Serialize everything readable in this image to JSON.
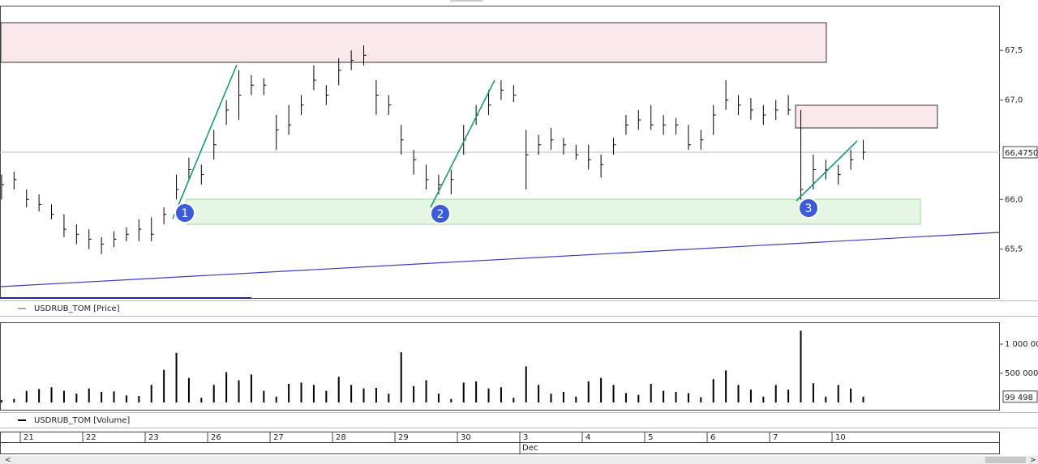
{
  "chart_data": [
    {
      "type": "ohlc",
      "legend": "USDRUB_TOM [Price]",
      "color": "#000000",
      "x": [
        -0.3,
        -0.1,
        0.1,
        0.3,
        0.5,
        0.7,
        0.9,
        1.1,
        1.3,
        1.5,
        1.7,
        1.9,
        2.1,
        2.3,
        2.5,
        2.7,
        2.9,
        3.1,
        3.3,
        3.5,
        3.7,
        3.9,
        4.1,
        4.3,
        4.5,
        4.7,
        4.9,
        5.1,
        5.3,
        5.5,
        5.7,
        5.9,
        6.1,
        6.3,
        6.5,
        6.7,
        6.9,
        7.1,
        7.3,
        7.5,
        7.7,
        7.9,
        8.1,
        8.3,
        8.5,
        8.7,
        8.9,
        9.1,
        9.3,
        9.5,
        9.7,
        9.9,
        10.1,
        10.3,
        10.5,
        10.7,
        10.9,
        11.1,
        11.3,
        11.5,
        11.7,
        11.9,
        12.1,
        12.3,
        12.5,
        12.7,
        12.9,
        13.1,
        13.3,
        13.5
      ],
      "high": [
        66.25,
        66.28,
        66.1,
        66.05,
        65.95,
        65.85,
        65.75,
        65.7,
        65.62,
        65.68,
        65.72,
        65.8,
        65.82,
        65.92,
        66.25,
        66.42,
        66.35,
        66.7,
        67.0,
        67.3,
        67.25,
        67.22,
        66.85,
        66.95,
        67.05,
        67.35,
        67.15,
        67.42,
        67.5,
        67.55,
        67.2,
        67.05,
        66.75,
        66.5,
        66.35,
        66.25,
        66.3,
        66.75,
        66.95,
        67.1,
        67.2,
        67.15,
        66.7,
        66.65,
        66.72,
        66.62,
        66.55,
        66.55,
        66.45,
        66.62,
        66.85,
        66.9,
        66.95,
        66.85,
        66.82,
        66.75,
        66.7,
        66.95,
        67.2,
        67.05,
        67.02,
        66.95,
        67.0,
        67.05,
        66.9,
        66.45,
        66.4,
        66.35,
        66.5,
        66.6
      ],
      "low": [
        66.0,
        66.1,
        65.92,
        65.88,
        65.8,
        65.62,
        65.55,
        65.5,
        65.45,
        65.52,
        65.58,
        65.58,
        65.58,
        65.75,
        66.0,
        66.2,
        66.15,
        66.4,
        66.75,
        66.8,
        67.05,
        67.05,
        66.5,
        66.65,
        66.85,
        67.1,
        66.95,
        67.15,
        67.3,
        67.35,
        66.85,
        66.85,
        66.45,
        66.25,
        66.1,
        66.05,
        66.05,
        66.45,
        66.75,
        66.85,
        67.0,
        66.98,
        66.1,
        66.45,
        66.5,
        66.45,
        66.4,
        66.3,
        66.22,
        66.45,
        66.65,
        66.7,
        66.7,
        66.65,
        66.65,
        66.5,
        66.5,
        66.65,
        66.9,
        66.85,
        66.8,
        66.75,
        66.8,
        66.85,
        66.0,
        66.1,
        66.2,
        66.15,
        66.3,
        66.4
      ],
      "close": [
        66.15,
        66.2,
        66.0,
        65.95,
        65.85,
        65.7,
        65.65,
        65.6,
        65.55,
        65.6,
        65.65,
        65.7,
        65.65,
        65.85,
        66.1,
        66.3,
        66.25,
        66.55,
        66.9,
        67.05,
        67.15,
        67.15,
        66.7,
        66.75,
        66.95,
        67.2,
        67.05,
        67.3,
        67.4,
        67.45,
        67.05,
        66.95,
        66.6,
        66.4,
        66.2,
        66.15,
        66.2,
        66.6,
        66.85,
        66.95,
        67.1,
        67.05,
        66.45,
        66.55,
        66.6,
        66.55,
        66.45,
        66.4,
        66.35,
        66.55,
        66.75,
        66.8,
        66.75,
        66.75,
        66.75,
        66.55,
        66.6,
        66.85,
        67.0,
        66.95,
        66.9,
        66.85,
        66.9,
        66.9,
        66.1,
        66.3,
        66.3,
        66.25,
        66.4,
        66.475
      ],
      "ylim": [
        65.0,
        67.95
      ],
      "yticks": [
        {
          "value": 65.5,
          "label": "65,5"
        },
        {
          "value": 66.0,
          "label": "66,0"
        },
        {
          "value": 67.0,
          "label": "67,0"
        },
        {
          "value": 67.5,
          "label": "67,5"
        }
      ],
      "last": {
        "value": 66.475,
        "label": "66,4750"
      }
    },
    {
      "type": "bar",
      "legend": "USDRUB_TOM [Volume]",
      "color": "#000000",
      "x": [
        -0.3,
        -0.1,
        0.1,
        0.3,
        0.5,
        0.7,
        0.9,
        1.1,
        1.3,
        1.5,
        1.7,
        1.9,
        2.1,
        2.3,
        2.5,
        2.7,
        2.9,
        3.1,
        3.3,
        3.5,
        3.7,
        3.9,
        4.1,
        4.3,
        4.5,
        4.7,
        4.9,
        5.1,
        5.3,
        5.5,
        5.7,
        5.9,
        6.1,
        6.3,
        6.5,
        6.7,
        6.9,
        7.1,
        7.3,
        7.5,
        7.7,
        7.9,
        8.1,
        8.3,
        8.5,
        8.7,
        8.9,
        9.1,
        9.3,
        9.5,
        9.7,
        9.9,
        10.1,
        10.3,
        10.5,
        10.7,
        10.9,
        11.1,
        11.3,
        11.5,
        11.7,
        11.9,
        12.1,
        12.3,
        12.5,
        12.7,
        12.9,
        13.1,
        13.3,
        13.5
      ],
      "values": [
        40000,
        60000,
        200000,
        230000,
        260000,
        200000,
        150000,
        240000,
        180000,
        190000,
        120000,
        110000,
        300000,
        560000,
        850000,
        420000,
        80000,
        300000,
        520000,
        380000,
        480000,
        200000,
        100000,
        320000,
        340000,
        300000,
        200000,
        440000,
        300000,
        240000,
        250000,
        150000,
        860000,
        280000,
        380000,
        150000,
        60000,
        340000,
        360000,
        240000,
        260000,
        80000,
        620000,
        300000,
        150000,
        180000,
        100000,
        360000,
        420000,
        300000,
        160000,
        130000,
        320000,
        200000,
        180000,
        160000,
        90000,
        400000,
        550000,
        300000,
        220000,
        100000,
        300000,
        220000,
        1230000,
        330000,
        100000,
        300000,
        240000,
        99498
      ],
      "ylim": [
        -139000,
        1375000
      ],
      "yticks": [
        {
          "value": 500000,
          "label": "500 000"
        },
        {
          "value": 1000000,
          "label": "1 000 000"
        }
      ],
      "last": {
        "value": 99498,
        "label": "99 498"
      }
    }
  ],
  "date_axis": {
    "xlim": [
      -0.325,
      15.688
    ],
    "xticks": [
      {
        "value": 0,
        "label": "21"
      },
      {
        "value": 1,
        "label": "22"
      },
      {
        "value": 2,
        "label": "23"
      },
      {
        "value": 3,
        "label": "26"
      },
      {
        "value": 4,
        "label": "27"
      },
      {
        "value": 5,
        "label": "28"
      },
      {
        "value": 6,
        "label": "29"
      },
      {
        "value": 7,
        "label": "30"
      },
      {
        "value": 8,
        "label": "3"
      },
      {
        "value": 9,
        "label": "4"
      },
      {
        "value": 10,
        "label": "5"
      },
      {
        "value": 11,
        "label": "6"
      },
      {
        "value": 12,
        "label": "7"
      },
      {
        "value": 13,
        "label": "10"
      }
    ],
    "month": {
      "value": 8,
      "label": "Dec"
    }
  },
  "annotations": [
    "1",
    "2",
    "3"
  ],
  "scrollbar": {
    "left": "<",
    "right": ">"
  }
}
